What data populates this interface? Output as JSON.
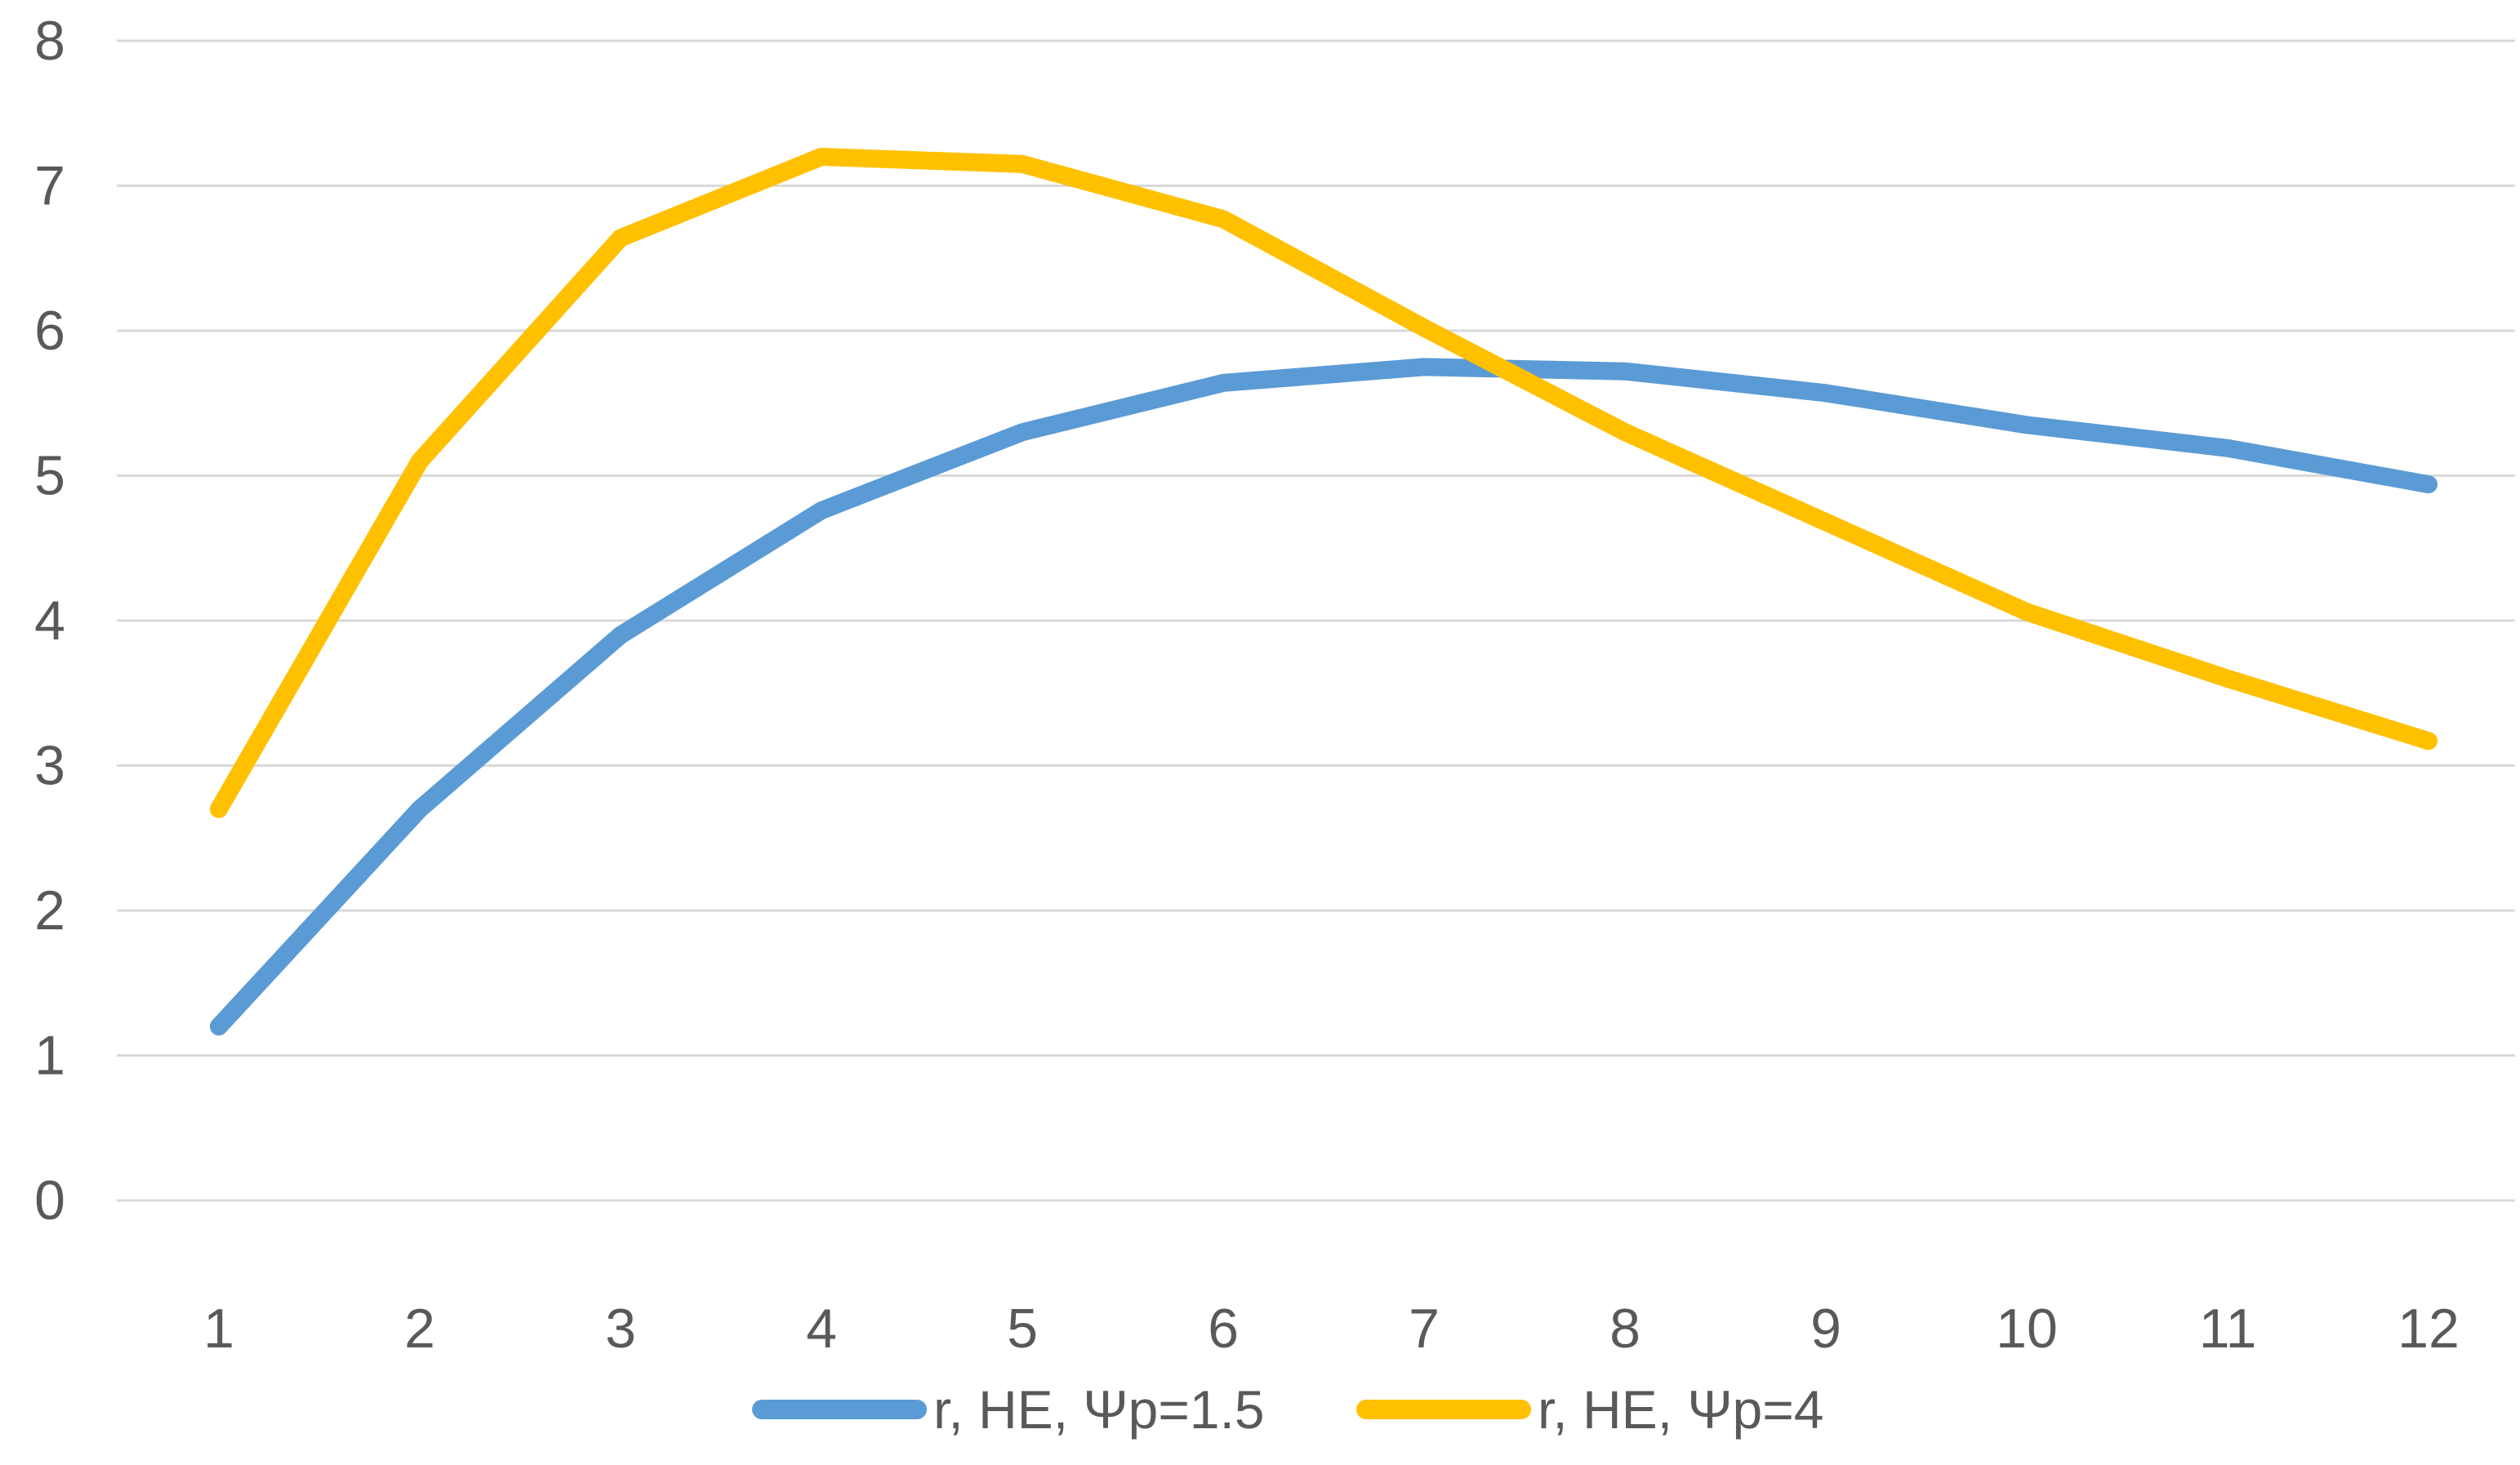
{
  "chart_data": {
    "type": "line",
    "title": "",
    "xlabel": "",
    "ylabel": "",
    "categories": [
      1,
      2,
      3,
      4,
      5,
      6,
      7,
      8,
      9,
      10,
      11,
      12
    ],
    "series": [
      {
        "name": "r, HE, Ψp=1.5",
        "color": "#5B9BD5",
        "values": [
          1.2,
          2.7,
          3.9,
          4.76,
          5.3,
          5.64,
          5.75,
          5.72,
          5.57,
          5.35,
          5.19,
          4.94
        ]
      },
      {
        "name": "r, HE, Ψp=4",
        "color": "#FFC000",
        "values": [
          2.7,
          5.1,
          6.64,
          7.2,
          7.15,
          6.77,
          6.02,
          5.3,
          4.68,
          4.06,
          3.6,
          3.17
        ]
      }
    ],
    "ylim": [
      0,
      8
    ],
    "ytick_step": 1,
    "yticks": [
      0,
      1,
      2,
      3,
      4,
      5,
      6,
      7,
      8
    ],
    "grid": true,
    "gridline_color": "#D9D9D9",
    "axis_label_color": "#595959",
    "legend_position": "bottom",
    "background": "#FFFFFF"
  }
}
